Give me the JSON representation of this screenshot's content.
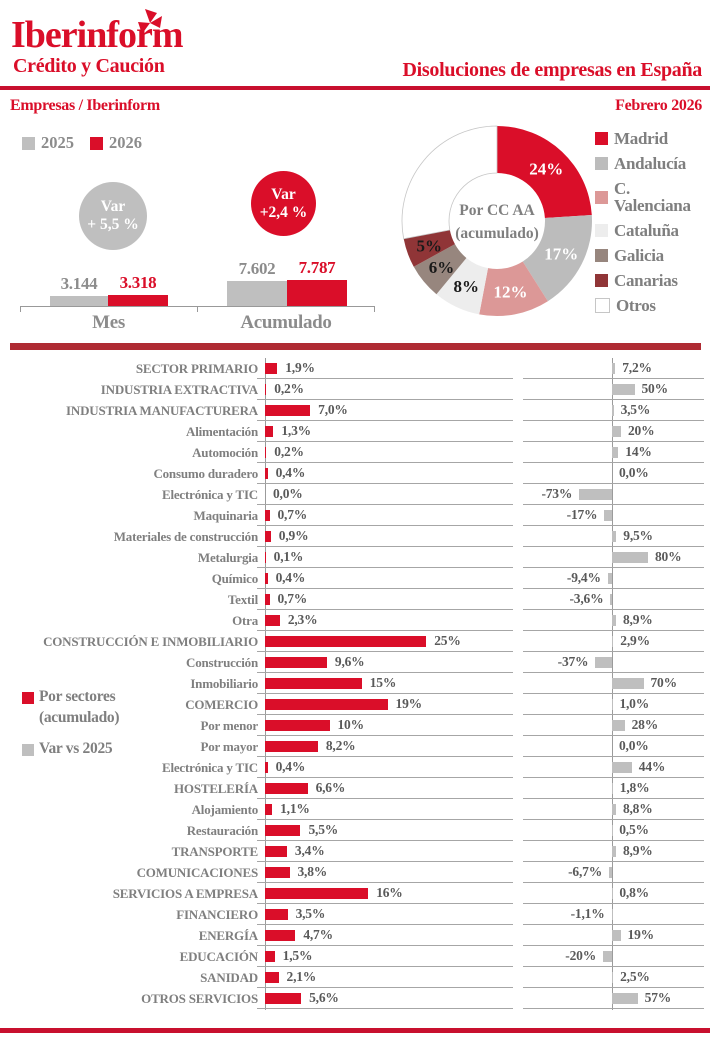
{
  "brand": {
    "name": "Iberinform",
    "tagline": "Crédito y Caución"
  },
  "header": {
    "title": "Disoluciones de empresas en España",
    "left": "Empresas / Iberinform",
    "right": "Febrero 2026"
  },
  "colors": {
    "red": "#DA0E29",
    "band_red": "#C8102E",
    "band_dark_red": "#AF2B33",
    "gray_bar": "#BFBFBF",
    "label_gray": "#7F7F7F",
    "value_gray": "#595959",
    "light_text_gray": "#8C8C8C"
  },
  "chart_data": [
    {
      "type": "bar",
      "name": "mes-vs-acumulado",
      "legend": [
        {
          "label": "2025",
          "color": "#BFBFBF"
        },
        {
          "label": "2026",
          "color": "#DA0E29"
        }
      ],
      "groups": [
        {
          "label": "Mes",
          "series": [
            {
              "name": "2025",
              "value": 3144,
              "value_label": "3.144"
            },
            {
              "name": "2026",
              "value": 3318,
              "value_label": "3.318"
            }
          ],
          "var_badge": {
            "line1": "Var",
            "line2": "+ 5,5 %",
            "color": "#BFBFBF"
          }
        },
        {
          "label": "Acumulado",
          "series": [
            {
              "name": "2025",
              "value": 7602,
              "value_label": "7.602"
            },
            {
              "name": "2026",
              "value": 7787,
              "value_label": "7.787"
            }
          ],
          "var_badge": {
            "line1": "Var",
            "line2": "+2,4 %",
            "color": "#DA0E29"
          }
        }
      ]
    },
    {
      "type": "pie",
      "name": "por-ccaa-acumulado",
      "title_line1": "Por CC AA",
      "title_line2": "(acumulado)",
      "segments": [
        {
          "label": "Madrid",
          "value": 24,
          "display": "24%",
          "color": "#DA0E29",
          "label_color": "#FFFFFF"
        },
        {
          "label": "Andalucía",
          "value": 17,
          "display": "17%",
          "color": "#BCBCBC",
          "label_color": "#FFFFFF"
        },
        {
          "label": "C. Valenciana",
          "value": 12,
          "display": "12%",
          "color": "#DC9897",
          "label_color": "#FFFFFF"
        },
        {
          "label": "Cataluña",
          "value": 8,
          "display": "8%",
          "color": "#EDEDED",
          "label_color": "#1A1A1A"
        },
        {
          "label": "Galicia",
          "value": 6,
          "display": "6%",
          "color": "#97867E",
          "label_color": "#1A1A1A"
        },
        {
          "label": "Canarias",
          "value": 5,
          "display": "5%",
          "color": "#903537",
          "label_color": "#1A1A1A"
        },
        {
          "label": "Otros",
          "value": 28,
          "display": "",
          "color": "#FFFFFF",
          "label_color": "#1A1A1A"
        }
      ]
    },
    {
      "type": "bar",
      "name": "por-sectores",
      "legend_left": {
        "line1": "Por sectores",
        "line2": "(acumulado)"
      },
      "legend_right": "Var vs 2025",
      "unit": "%",
      "rows": [
        {
          "label": "SECTOR PRIMARIO",
          "pct": 1.9,
          "pct_label": "1,9%",
          "var": 7.2,
          "var_label": "7,2%"
        },
        {
          "label": "INDUSTRIA EXTRACTIVA",
          "pct": 0.2,
          "pct_label": "0,2%",
          "var": 50,
          "var_label": "50%"
        },
        {
          "label": "INDUSTRIA MANUFACTURERA",
          "pct": 7.0,
          "pct_label": "7,0%",
          "var": 3.5,
          "var_label": "3,5%"
        },
        {
          "label": "Alimentación",
          "pct": 1.3,
          "pct_label": "1,3%",
          "var": 20,
          "var_label": "20%"
        },
        {
          "label": "Automoción",
          "pct": 0.2,
          "pct_label": "0,2%",
          "var": 14,
          "var_label": "14%"
        },
        {
          "label": "Consumo duradero",
          "pct": 0.4,
          "pct_label": "0,4%",
          "var": 0.0,
          "var_label": "0,0%"
        },
        {
          "label": "Electrónica y TIC",
          "pct": 0.0,
          "pct_label": "0,0%",
          "var": -73,
          "var_label": "-73%"
        },
        {
          "label": "Maquinaria",
          "pct": 0.7,
          "pct_label": "0,7%",
          "var": -17,
          "var_label": "-17%"
        },
        {
          "label": "Materiales de construcción",
          "pct": 0.9,
          "pct_label": "0,9%",
          "var": 9.5,
          "var_label": "9,5%"
        },
        {
          "label": "Metalurgia",
          "pct": 0.1,
          "pct_label": "0,1%",
          "var": 80,
          "var_label": "80%"
        },
        {
          "label": "Químico",
          "pct": 0.4,
          "pct_label": "0,4%",
          "var": -9.4,
          "var_label": "-9,4%"
        },
        {
          "label": "Textil",
          "pct": 0.7,
          "pct_label": "0,7%",
          "var": -3.6,
          "var_label": "-3,6%"
        },
        {
          "label": "Otra",
          "pct": 2.3,
          "pct_label": "2,3%",
          "var": 8.9,
          "var_label": "8,9%"
        },
        {
          "label": "CONSTRUCCIÓN E INMOBILIARIO",
          "pct": 25,
          "pct_label": "25%",
          "var": 2.9,
          "var_label": "2,9%"
        },
        {
          "label": "Construcción",
          "pct": 9.6,
          "pct_label": "9,6%",
          "var": -37,
          "var_label": "-37%"
        },
        {
          "label": "Inmobiliario",
          "pct": 15,
          "pct_label": "15%",
          "var": 70,
          "var_label": "70%"
        },
        {
          "label": "COMERCIO",
          "pct": 19,
          "pct_label": "19%",
          "var": 1.0,
          "var_label": "1,0%"
        },
        {
          "label": "Por menor",
          "pct": 10,
          "pct_label": "10%",
          "var": 28,
          "var_label": "28%"
        },
        {
          "label": "Por mayor",
          "pct": 8.2,
          "pct_label": "8,2%",
          "var": 0.0,
          "var_label": "0,0%"
        },
        {
          "label": "Electrónica y TIC",
          "pct": 0.4,
          "pct_label": "0,4%",
          "var": 44,
          "var_label": "44%"
        },
        {
          "label": "HOSTELERÍA",
          "pct": 6.6,
          "pct_label": "6,6%",
          "var": 1.8,
          "var_label": "1,8%"
        },
        {
          "label": "Alojamiento",
          "pct": 1.1,
          "pct_label": "1,1%",
          "var": 8.8,
          "var_label": "8,8%"
        },
        {
          "label": "Restauración",
          "pct": 5.5,
          "pct_label": "5,5%",
          "var": 0.5,
          "var_label": "0,5%"
        },
        {
          "label": "TRANSPORTE",
          "pct": 3.4,
          "pct_label": "3,4%",
          "var": 8.9,
          "var_label": "8,9%"
        },
        {
          "label": "COMUNICACIONES",
          "pct": 3.8,
          "pct_label": "3,8%",
          "var": -6.7,
          "var_label": "-6,7%"
        },
        {
          "label": "SERVICIOS A EMPRESA",
          "pct": 16,
          "pct_label": "16%",
          "var": 0.8,
          "var_label": "0,8%"
        },
        {
          "label": "FINANCIERO",
          "pct": 3.5,
          "pct_label": "3,5%",
          "var": -1.1,
          "var_label": "-1,1%"
        },
        {
          "label": "ENERGÍA",
          "pct": 4.7,
          "pct_label": "4,7%",
          "var": 19,
          "var_label": "19%"
        },
        {
          "label": "EDUCACIÓN",
          "pct": 1.5,
          "pct_label": "1,5%",
          "var": -20,
          "var_label": "-20%"
        },
        {
          "label": "SANIDAD",
          "pct": 2.1,
          "pct_label": "2,1%",
          "var": 2.5,
          "var_label": "2,5%"
        },
        {
          "label": "OTROS SERVICIOS",
          "pct": 5.6,
          "pct_label": "5,6%",
          "var": 57,
          "var_label": "57%"
        }
      ]
    }
  ]
}
